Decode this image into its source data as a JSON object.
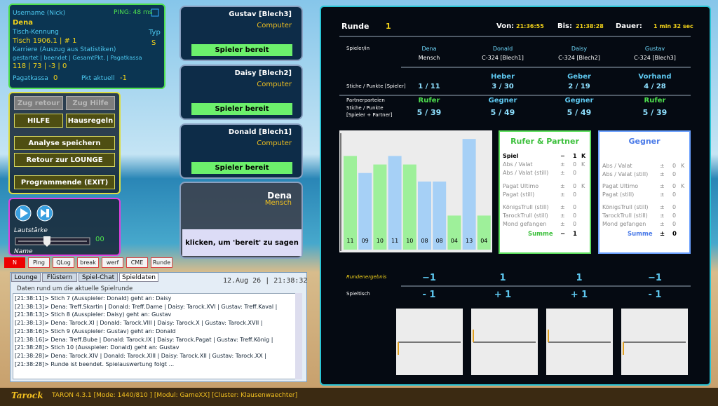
{
  "user_panel": {
    "username_label": "Username (Nick)",
    "ping": "PING: 48 ms",
    "username": "Dena",
    "table_label": "Tisch-Kennung",
    "type_label": "Typ",
    "table_id": "Tisch 1906.1 | # 1",
    "type": "S",
    "career_label": "Karriere (Auszug aus Statistiken)",
    "career_columns": "gestartet | beendet | GesamtPkt. | Pagatkassa",
    "career_values": "118 | 73 | -3 | 0",
    "pagat_label": "Pagatkassa",
    "pagat_value": "0",
    "points_label": "Pkt aktuell",
    "points_value": "-1"
  },
  "menu_buttons": [
    "Zug retour",
    "Zug Hilfe",
    "HILFE",
    "Hausregeln",
    "Analyse speichern",
    "Retour zur LOUNGE",
    "Programmende (EXIT)"
  ],
  "sound_panel": {
    "volume_label": "Lautstärke",
    "volume_value": "00",
    "name_label": "Name"
  },
  "tool_buttons": [
    "N",
    "Ping",
    "QLog",
    "break",
    "werf",
    "CME",
    "Runde"
  ],
  "chat": {
    "tabs": [
      "Lounge",
      "Flüstern",
      "Spiel-Chat",
      "Spieldaten"
    ],
    "timestamp": "12.Aug 26 | 21:38:32",
    "subtitle": "Daten rund um die aktuelle Spielrunde",
    "lines": [
      "[21:38:11]> Stich 7 (Ausspieler: Donald) geht an: Daisy",
      "[21:38:13]> Dena: Treff.Skartin | Donald: Treff.Dame | Daisy: Tarock.XVI | Gustav: Treff.Kaval |",
      "[21:38:13]> Stich 8 (Ausspieler: Daisy) geht an: Gustav",
      "[21:38:13]> Dena: Tarock.XI | Donald: Tarock.VIII | Daisy: Tarock.X | Gustav: Tarock.XVII |",
      "[21:38:16]> Stich 9 (Ausspieler: Gustav) geht an: Donald",
      "[21:38:16]> Dena: Treff.Bube | Donald: Tarock.IX | Daisy: Tarock.Pagat | Gustav: Treff.König |",
      "[21:38:28]> Stich 10 (Ausspieler: Donald) geht an: Gustav",
      "[21:38:28]> Dena: Tarock.XIV | Donald: Tarock.XIII | Daisy: Tarock.XII | Gustav: Tarock.XX |",
      "[21:38:28]> Runde ist beendet. Spielauswertung folgt ..."
    ]
  },
  "players": [
    {
      "name": "Gustav [Blech3]",
      "kind": "Computer",
      "status": "Spieler bereit"
    },
    {
      "name": "Daisy [Blech2]",
      "kind": "Computer",
      "status": "Spieler bereit"
    },
    {
      "name": "Donald [Blech1]",
      "kind": "Computer",
      "status": "Spieler bereit"
    },
    {
      "name": "Dena",
      "kind": "Mensch",
      "status": "klicken, um 'bereit' zu sagen"
    }
  ],
  "round": {
    "label": "Runde",
    "number": "1",
    "from_label": "Von:",
    "from": "21:36:55",
    "to_label": "Bis:",
    "to": "21:38:28",
    "duration_label": "Dauer:",
    "duration": "1 min 32 sec"
  },
  "score_table": {
    "player_label": "Spieler/in",
    "tricks_label": "Stiche / Punkte [Spieler]",
    "party_labels": [
      "Partnerparteien",
      "Stiche / Punkte",
      "[Spieler + Partner]"
    ],
    "columns": [
      {
        "name": "Dena",
        "kind": "Mensch",
        "tricks": "1 / 11",
        "party": "Rufer",
        "party_tricks": "5 / 39"
      },
      {
        "name": "Donald",
        "kind": "C-324 [Blech1]",
        "role": "Heber",
        "tricks": "3 / 30",
        "party": "Gegner",
        "party_tricks": "5 / 49"
      },
      {
        "name": "Daisy",
        "kind": "C-324 [Blech2]",
        "role": "Geber",
        "tricks": "2 / 19",
        "party": "Gegner",
        "party_tricks": "5 / 49"
      },
      {
        "name": "Gustav",
        "kind": "C-324 [Blech3]",
        "role": "Vorhand",
        "tricks": "4 / 28",
        "party": "Rufer",
        "party_tricks": "5 / 39"
      }
    ]
  },
  "trick_chart": {
    "type": "bar",
    "values": [
      11,
      9,
      10,
      11,
      10,
      8,
      8,
      4,
      13,
      4
    ],
    "value_labels": [
      "11",
      "09",
      "10",
      "11",
      "10",
      "08",
      "08",
      "04",
      "13",
      "04"
    ],
    "colors": [
      "#9ef09a",
      "#a6d0f6",
      "#9ef09a",
      "#a6d0f6",
      "#9ef09a",
      "#a6d0f6",
      "#a6d0f6",
      "#9ef09a",
      "#a6d0f6",
      "#9ef09a"
    ],
    "ylim": [
      0,
      14
    ]
  },
  "rufer_box": {
    "title": "Rufer & Partner",
    "rows": [
      [
        "Spiel",
        "−",
        "1",
        "K"
      ],
      [
        "Abs / Valat",
        "±",
        "0",
        "K"
      ],
      [
        "Abs / Valat (still)",
        "±",
        "0"
      ],
      [
        "Pagat Ultimo",
        "±",
        "0",
        "K"
      ],
      [
        "Pagat (still)",
        "±",
        "0"
      ],
      [
        "KönigsTrull (still)",
        "±",
        "0"
      ],
      [
        "TarockTrull (still)",
        "±",
        "0"
      ],
      [
        "Mond gefangen",
        "±",
        "0"
      ]
    ],
    "sum": [
      "Summe",
      "−",
      "1"
    ]
  },
  "gegner_box": {
    "title": "Gegner",
    "rows": [
      [
        "Abs / Valat",
        "±",
        "0",
        "K"
      ],
      [
        "Abs / Valat (still)",
        "±",
        "0"
      ],
      [
        "Pagat Ultimo",
        "±",
        "0",
        "K"
      ],
      [
        "Pagat (still)",
        "±",
        "0"
      ],
      [
        "KönigsTrull (still)",
        "±",
        "0"
      ],
      [
        "TarockTrull (still)",
        "±",
        "0"
      ],
      [
        "Mond gefangen",
        "±",
        "0"
      ]
    ],
    "sum": [
      "Summe",
      "±",
      "0"
    ]
  },
  "result": {
    "round_label": "Rundenergebnis",
    "round_values": [
      "−1",
      "1",
      "1",
      "−1"
    ],
    "table_label": "Spieltisch",
    "table_values": [
      "- 1",
      "+ 1",
      "+ 1",
      "- 1"
    ]
  },
  "footer": {
    "logo": "Tarock",
    "status": "TARON 4.3.1 [Mode: 1440/810 ] [Modul: GameXX] [Cluster: Klausenwaechter]"
  }
}
